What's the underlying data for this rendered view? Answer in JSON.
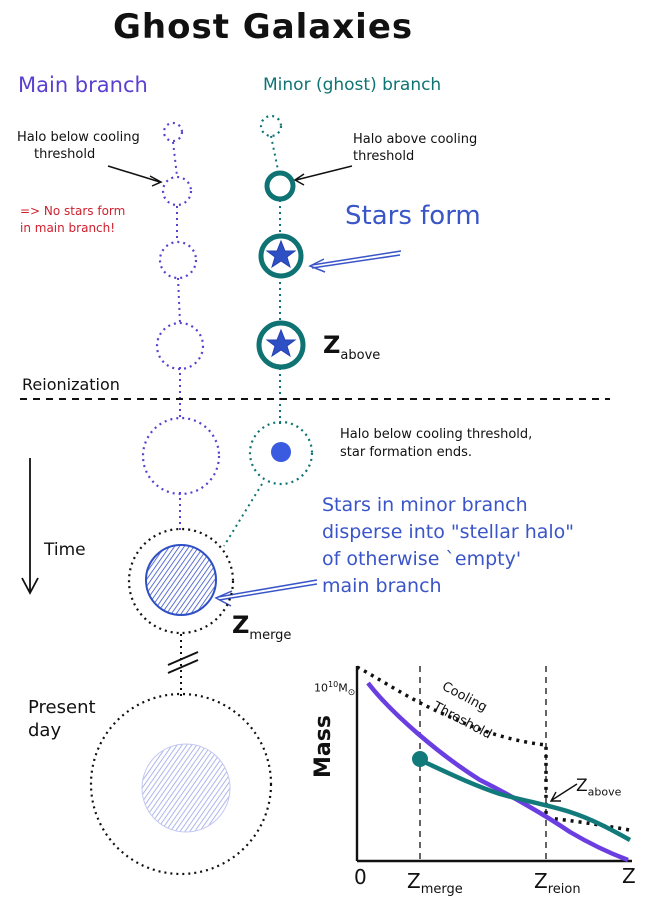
{
  "title": "Ghost Galaxies",
  "branches": {
    "main": "Main branch",
    "minor": "Minor (ghost) branch"
  },
  "notes": {
    "main_halo_below_l1": "Halo below cooling",
    "main_halo_below_l2": "threshold",
    "no_stars_l1": "=> No stars form",
    "no_stars_l2": "in main branch!",
    "minor_halo_above_l1": "Halo above cooling",
    "minor_halo_above_l2": "threshold",
    "stars_form": "Stars form",
    "z_above": "Z",
    "z_above_sub": "above",
    "reionization": "Reionization",
    "sf_ends_l1": "Halo below cooling threshold,",
    "sf_ends_l2": "star formation ends.",
    "disperse_l1": "Stars in minor branch",
    "disperse_l2": "disperse into \"stellar halo\"",
    "disperse_l3": "of otherwise `empty'",
    "disperse_l4": "main branch",
    "time": "Time",
    "z_merge": "Z",
    "z_merge_sub": "merge",
    "present_l1": "Present",
    "present_l2": "day"
  },
  "inset_chart": {
    "ylabel": "Mass",
    "y_tick_base": "10",
    "y_tick_exp": "10",
    "y_tick_unit": "M",
    "y_tick_unit_sub": "⊙",
    "x_origin": "0",
    "x_merge": "Z",
    "x_merge_sub": "merge",
    "x_reion": "Z",
    "x_reion_sub": "reion",
    "x_axis": "Z",
    "cooling_l1": "Cooling",
    "cooling_l2": "Threshold",
    "z_above": "Z",
    "z_above_sub": "above"
  },
  "colors": {
    "main": "#5b3fd0",
    "minor": "#0f7373",
    "star": "#2f4fc4",
    "stellar_fill": "#5566d8",
    "present_fill": "#b8bff0",
    "red_note": "#d0202e",
    "blue_text": "#3a55c8"
  }
}
